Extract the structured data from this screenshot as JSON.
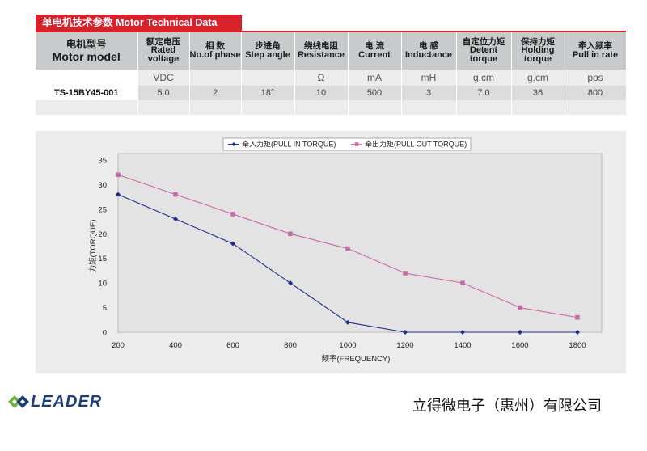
{
  "table": {
    "title": "单电机技术参数 Motor Technical Data",
    "columns": [
      {
        "cn": "电机型号",
        "en": "Motor model"
      },
      {
        "cn": "额定电压",
        "en": "Rated voltage"
      },
      {
        "cn": "相 数",
        "en": "No.of phase"
      },
      {
        "cn": "步进角",
        "en": "Step angle"
      },
      {
        "cn": "绕线电阻",
        "en": "Resistance"
      },
      {
        "cn": "电 流",
        "en": "Current"
      },
      {
        "cn": "电 感",
        "en": "Inductance"
      },
      {
        "cn": "自定位力矩",
        "en": "Detent torque"
      },
      {
        "cn": "保持力矩",
        "en": "Holding torque"
      },
      {
        "cn": "牵入频率",
        "en": "Pull in rate"
      }
    ],
    "units": [
      "",
      "VDC",
      "",
      "",
      "Ω",
      "mA",
      "mH",
      "g.cm",
      "g.cm",
      "pps"
    ],
    "rows": [
      [
        "TS-15BY45-001",
        "5.0",
        "2",
        "18°",
        "10",
        "500",
        "3",
        "7.0",
        "36",
        "800"
      ]
    ]
  },
  "chart_data": {
    "type": "line",
    "x": [
      200,
      400,
      600,
      800,
      1000,
      1200,
      1400,
      1600,
      1800
    ],
    "series": [
      {
        "name": "牵入力矩(PULL IN TORQUE)",
        "color": "#1f2f86",
        "marker": "diamond",
        "values": [
          28,
          23,
          18,
          10,
          2,
          0,
          0,
          0,
          0
        ]
      },
      {
        "name": "牵出力矩(PULL OUT TORQUE)",
        "color": "#c66aa8",
        "marker": "square",
        "values": [
          32,
          28,
          24,
          20,
          17,
          12,
          10,
          5,
          3
        ]
      }
    ],
    "xlabel": "频率(FREQUENCY)",
    "ylabel": "力矩(TORQUE)",
    "ylim": [
      0,
      35
    ],
    "yticks": [
      0,
      5,
      10,
      15,
      20,
      25,
      30,
      35
    ],
    "grid": false,
    "legend": "top-center"
  },
  "footer": {
    "logo_text": "LEADER",
    "company": "立得微电子（惠州）有限公司"
  }
}
